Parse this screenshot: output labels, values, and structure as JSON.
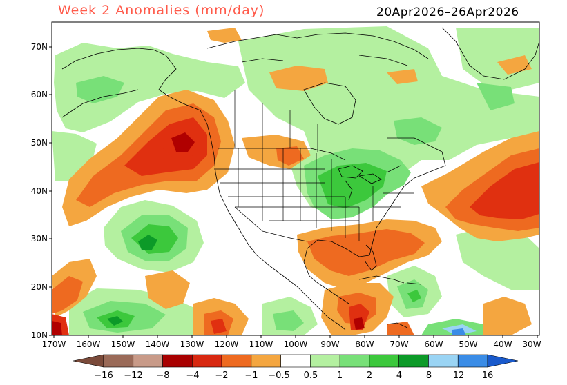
{
  "map": {
    "title": "Week 2 Anomalies (mm/day)",
    "date_range": "20Apr2026–26Apr2026",
    "colors": {
      "dry_extreme": "#8a5a4a",
      "dry_very": "#b0705a",
      "dry_strong": "#c89080",
      "dry_8": "#b00000",
      "dry_4": "#e03010",
      "dry_2": "#ee6a20",
      "dry_1": "#f4a640",
      "neutral": "#ffffff",
      "wet_1": "#b4f0a0",
      "wet_2": "#78e078",
      "wet_4": "#3cc83c",
      "wet_8": "#0c9a28",
      "wet_12": "#9ad4f4",
      "wet_16": "#3a8ce6",
      "wet_extreme": "#1a5acc"
    },
    "lat_labels": [
      "70N",
      "60N",
      "50N",
      "40N",
      "30N",
      "20N",
      "10N"
    ],
    "lon_labels": [
      "170W",
      "160W",
      "150W",
      "140W",
      "130W",
      "120W",
      "110W",
      "100W",
      "90W",
      "80W",
      "70W",
      "60W",
      "50W",
      "40W",
      "30W"
    ]
  },
  "colorbar": {
    "labels": [
      "−16",
      "−12",
      "−8",
      "−4",
      "−2",
      "−1",
      "−0.5",
      "0.5",
      "1",
      "2",
      "4",
      "8",
      "12",
      "16"
    ],
    "colors": [
      "#9a6a58",
      "#c89a88",
      "#a80000",
      "#d82810",
      "#ee6a20",
      "#f4a640",
      "#ffffff",
      "#b4f0a0",
      "#78e078",
      "#3cc83c",
      "#0c9a28",
      "#9ad4f4",
      "#3a8ce6"
    ],
    "end_left_color": "#7a4a3a",
    "end_right_color": "#1a5acc"
  }
}
